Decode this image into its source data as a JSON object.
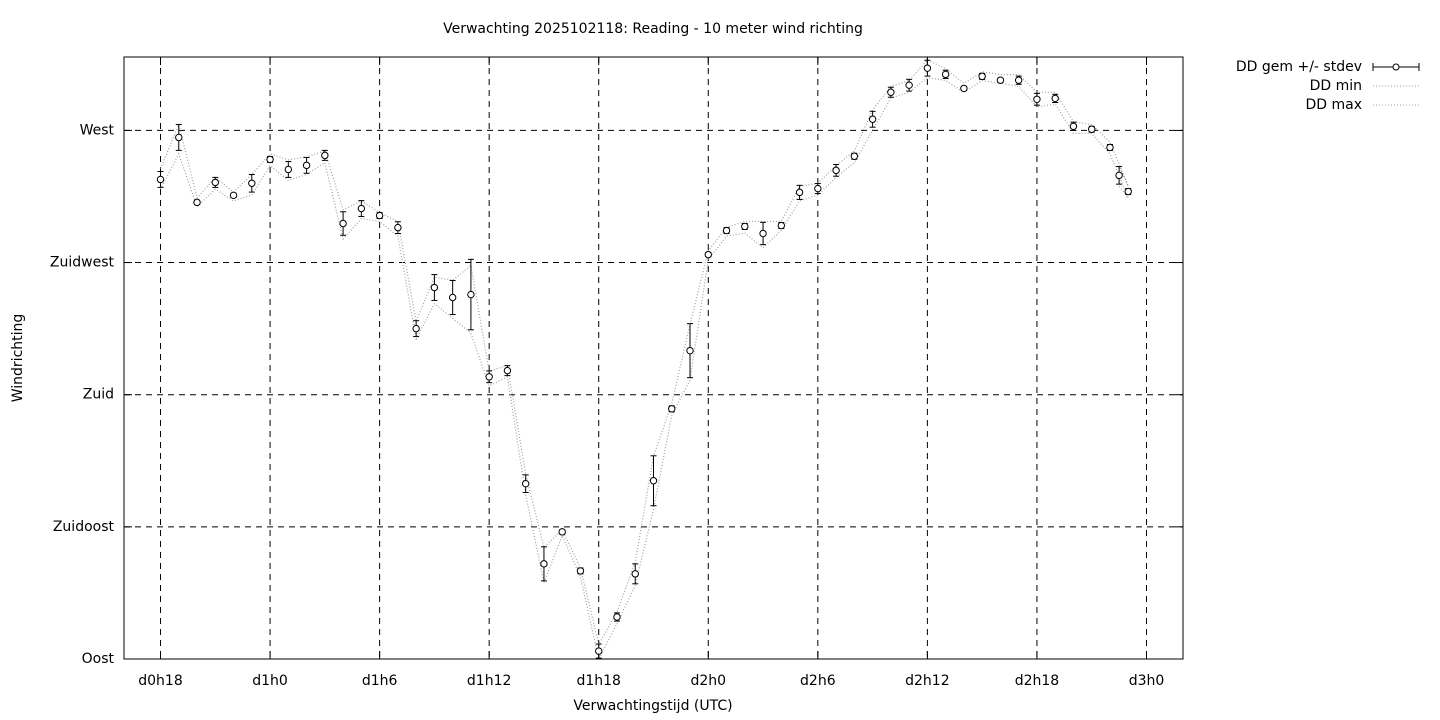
{
  "chart_data": {
    "type": "errorbar",
    "title": "Verwachting 2025102118: Reading - 10 meter wind richting",
    "xlabel": "Verwachtingstijd (UTC)",
    "ylabel": "Windrichting",
    "xlim": [
      16,
      74
    ],
    "ylim": [
      90,
      295
    ],
    "xticks": [
      {
        "value": 18,
        "label": "d0h18"
      },
      {
        "value": 24,
        "label": "d1h0"
      },
      {
        "value": 30,
        "label": "d1h6"
      },
      {
        "value": 36,
        "label": "d1h12"
      },
      {
        "value": 42,
        "label": "d1h18"
      },
      {
        "value": 48,
        "label": "d2h0"
      },
      {
        "value": 54,
        "label": "d2h6"
      },
      {
        "value": 60,
        "label": "d2h12"
      },
      {
        "value": 66,
        "label": "d2h18"
      },
      {
        "value": 72,
        "label": "d3h0"
      }
    ],
    "yticks": [
      {
        "value": 90,
        "label": "Oost"
      },
      {
        "value": 135,
        "label": "Zuidoost"
      },
      {
        "value": 180,
        "label": "Zuid"
      },
      {
        "value": 225,
        "label": "Zuidwest"
      },
      {
        "value": 270,
        "label": "West"
      }
    ],
    "grid": true,
    "x": [
      18,
      19,
      20,
      21,
      22,
      23,
      24,
      25,
      26,
      27,
      28,
      29,
      30,
      31,
      32,
      33,
      34,
      35,
      36,
      37,
      38,
      39,
      40,
      41,
      42,
      43,
      44,
      45,
      46,
      47,
      48,
      49,
      50,
      51,
      52,
      53,
      54,
      55,
      56,
      57,
      58,
      59,
      60,
      61,
      62,
      63,
      64,
      65,
      66,
      67,
      68,
      69,
      70,
      71,
      70.5
    ],
    "series": [
      {
        "name": "DD gem +/- stdev",
        "color": "#000000",
        "values": [
          253.3,
          267.6,
          245.5,
          252.3,
          247.9,
          252,
          260.1,
          256.7,
          258.1,
          261.5,
          238.3,
          243.4,
          241,
          236.9,
          202.5,
          216.5,
          213.1,
          214.1,
          186.1,
          188.2,
          149.7,
          122.4,
          133.3,
          120,
          92.7,
          104.3,
          119,
          150.7,
          175.2,
          195,
          227.7,
          235.9,
          237.3,
          234.9,
          237.6,
          248.9,
          250.2,
          256.4,
          261.2,
          273.8,
          283,
          285.4,
          291.2,
          289.1,
          284.3,
          288.4,
          287.1,
          287.1,
          280.6,
          280.9,
          271.4,
          270.4,
          264.2,
          249.2,
          254.7
        ],
        "errors": [
          2.7,
          4.4,
          0.7,
          1.7,
          0.7,
          3,
          1,
          2.7,
          2.7,
          1.7,
          4,
          2.7,
          1,
          2,
          2.7,
          4.4,
          5.8,
          12,
          2,
          1.7,
          3,
          5.8,
          0.7,
          1,
          2.4,
          1.4,
          3.4,
          8.5,
          1,
          9.2,
          0.7,
          1,
          1,
          3.8,
          1,
          2.4,
          1.7,
          2,
          1,
          2.7,
          1.7,
          2,
          2.7,
          1.4,
          0.7,
          1,
          0.7,
          1.4,
          2,
          1.4,
          1.4,
          1,
          1,
          1,
          3
        ]
      },
      {
        "name": "DD min",
        "color": "#a0a0a0",
        "values": [
          250,
          262,
          244,
          250,
          246,
          248,
          258,
          253,
          255,
          259,
          233,
          240,
          239,
          234,
          199,
          211,
          206,
          201,
          183,
          186,
          146,
          116,
          132,
          118,
          90,
          102,
          115,
          141,
          173,
          185,
          226,
          234,
          235,
          230,
          236,
          246,
          248,
          254,
          259,
          270,
          281,
          283,
          288,
          287,
          283,
          287,
          286,
          285,
          278,
          279,
          269,
          269,
          262,
          247,
          251
        ]
      },
      {
        "name": "DD max",
        "color": "#a0a0a0",
        "values": [
          257,
          272,
          247,
          254,
          249,
          255,
          262,
          260,
          261,
          263,
          243,
          246,
          242,
          239,
          205,
          220,
          219,
          224,
          188,
          190,
          153,
          128,
          134,
          121,
          95,
          106,
          123,
          159,
          177,
          204,
          229,
          237,
          239,
          239,
          239,
          251,
          252,
          258,
          263,
          277,
          285,
          287,
          294,
          291,
          286,
          290,
          289,
          289,
          283,
          283,
          273,
          272,
          266,
          251,
          258
        ]
      }
    ]
  }
}
